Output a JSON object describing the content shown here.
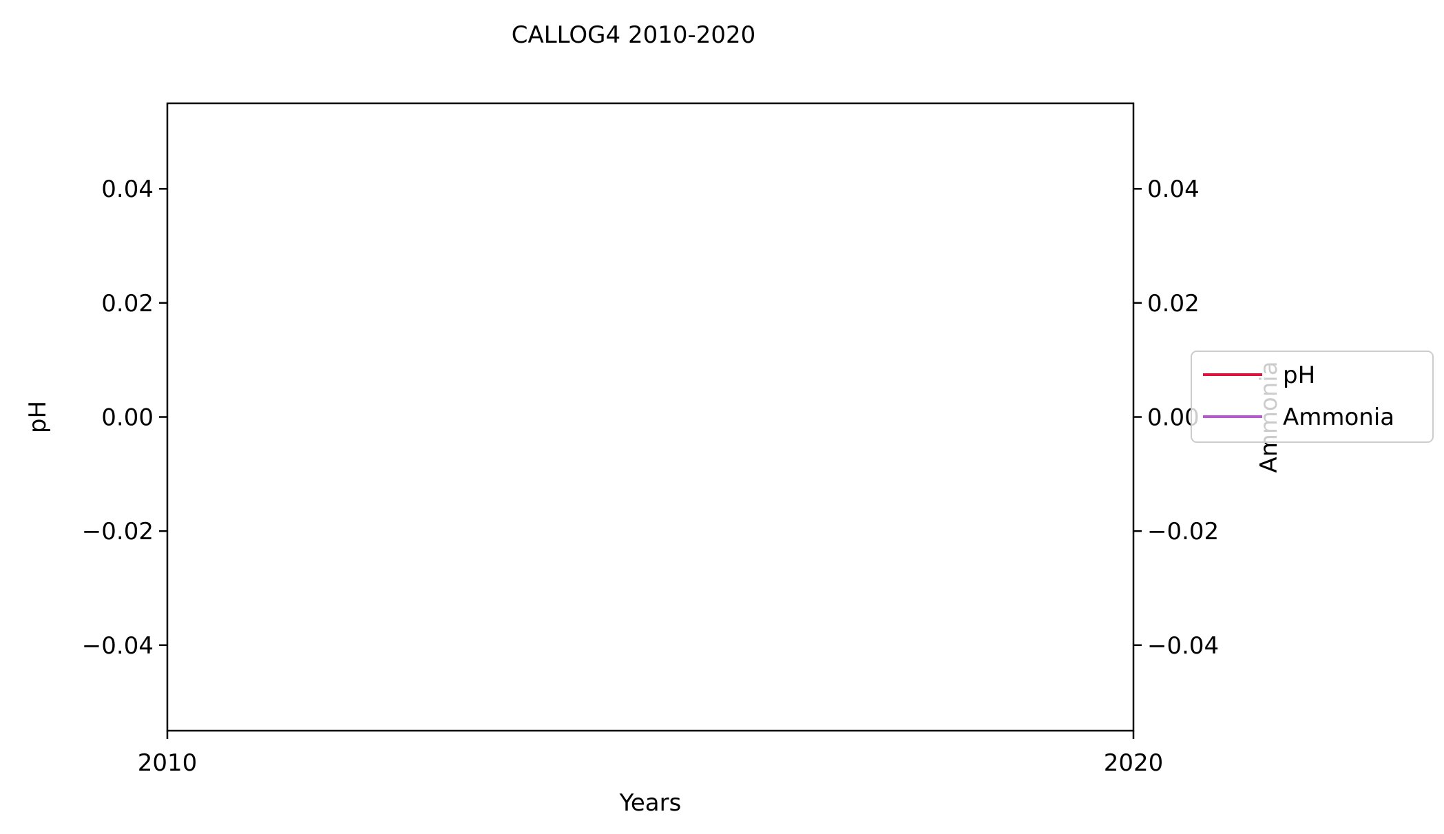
{
  "chart_data": {
    "type": "line",
    "title": "CALLOG4 2010-2020",
    "xlabel": "Years",
    "ylabel": "pH",
    "ylabel_right": "Ammonia",
    "xlim": [
      2010,
      2020
    ],
    "ylim": [
      -0.055,
      0.055
    ],
    "ylim_right": [
      -0.055,
      0.055
    ],
    "x_ticks": [
      2010,
      2020
    ],
    "x_tick_labels": [
      "2010",
      "2020"
    ],
    "y_ticks": [
      0.04,
      0.02,
      0.0,
      -0.02,
      -0.04
    ],
    "y_tick_labels": [
      "0.04",
      "0.02",
      "0.00",
      "−0.02",
      "−0.04"
    ],
    "y_right_ticks": [
      0.04,
      0.02,
      0.0,
      -0.02,
      -0.04
    ],
    "y_right_tick_labels": [
      "0.04",
      "0.02",
      "0.00",
      "−0.02",
      "−0.04"
    ],
    "grid": false,
    "legend_position": "right",
    "series": [
      {
        "name": "pH",
        "color": "#dc143c",
        "axis": "left",
        "x": [],
        "y": []
      },
      {
        "name": "Ammonia",
        "color": "#ba55d3",
        "axis": "right",
        "x": [],
        "y": []
      }
    ]
  }
}
